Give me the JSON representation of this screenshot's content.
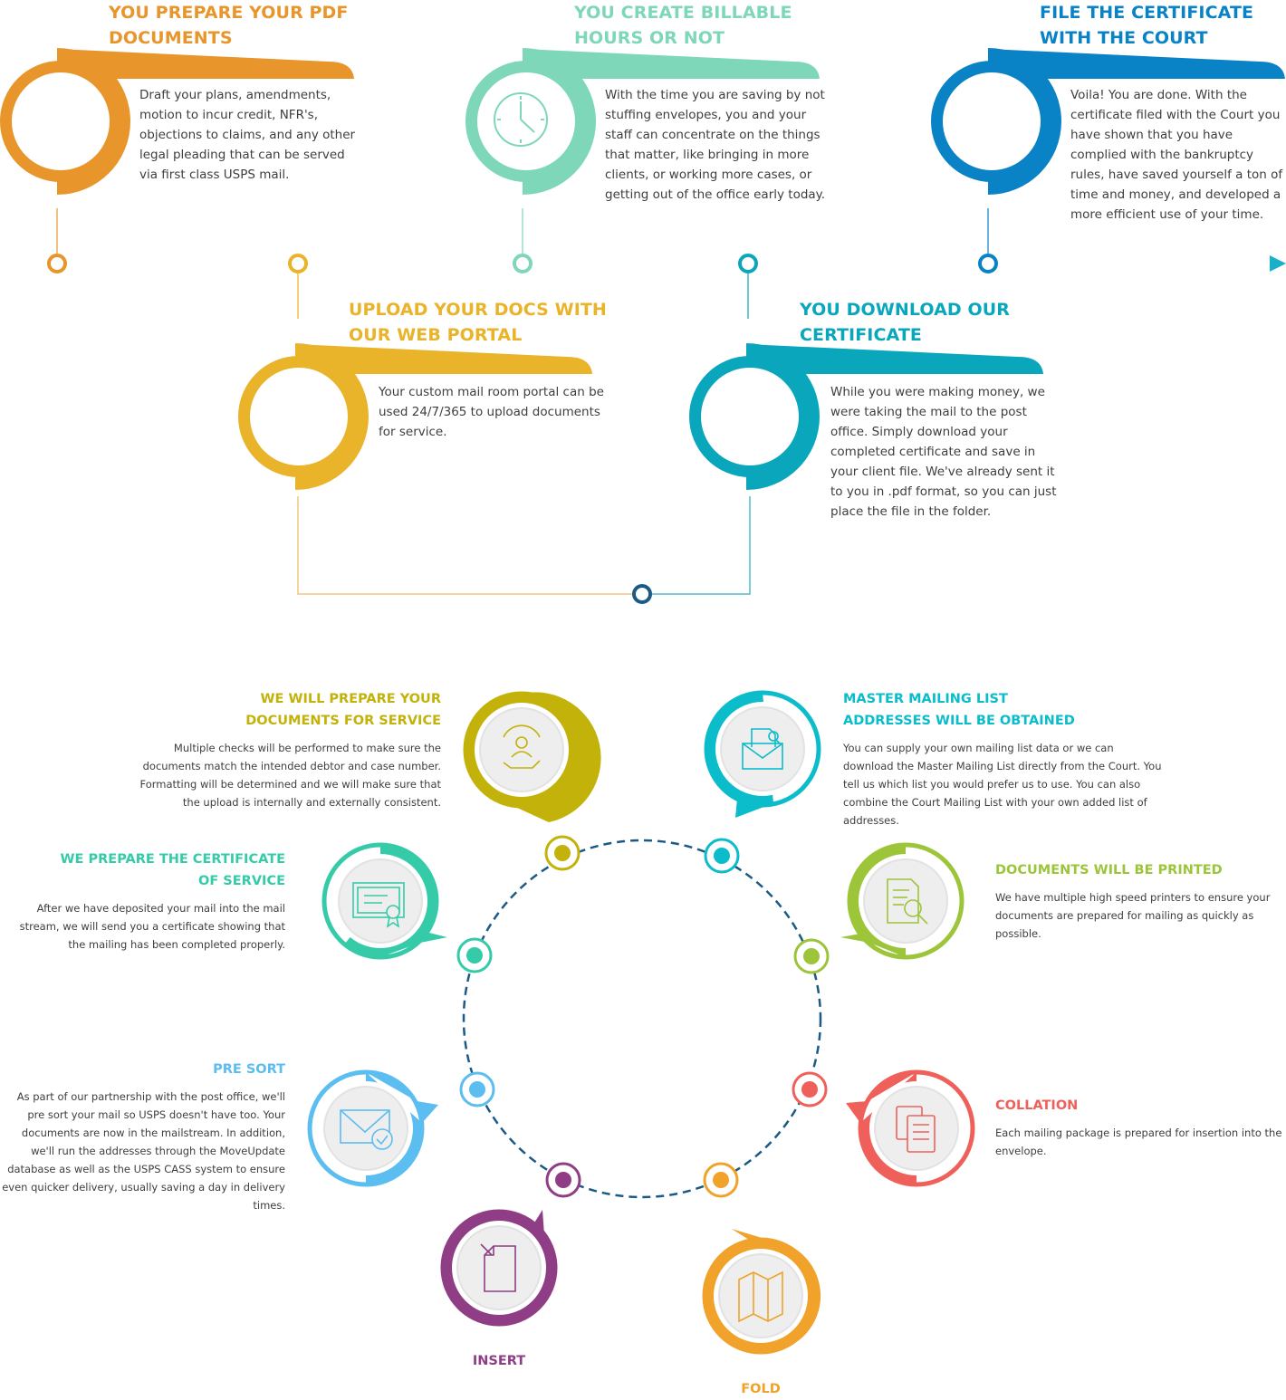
{
  "timeline": {
    "steps": [
      {
        "title": "YOU PREPARE YOUR PDF DOCUMENTS",
        "text": "Draft your plans, amendments, motion to incur credit, NFR's, objections to claims, and any other legal pleading that can be served via first class USPS mail.",
        "color": "#e8962b",
        "icon": "blank-circle"
      },
      {
        "title": "UPLOAD YOUR DOCS WITH OUR WEB PORTAL",
        "text": "Your custom mail room portal can be used 24/7/365 to upload documents for service.",
        "color": "#e9b32a",
        "icon": "blank-circle"
      },
      {
        "title": "YOU CREATE BILLABLE HOURS OR NOT",
        "text": "With the time you are saving by not stuffing envelopes, you and your staff can concentrate on the things that matter, like bringing in more clients, or working more cases, or getting out of the office early today.",
        "color": "#7fd7b9",
        "icon": "clock-icon"
      },
      {
        "title": "YOU DOWNLOAD OUR CERTIFICATE",
        "text": "While you were making money, we were taking the mail to the post office. Simply download your completed certificate and save in your client file. We've already sent it to you in .pdf format, so you can just place the file in the folder.",
        "color": "#0aa7bc",
        "icon": "blank-circle"
      },
      {
        "title": "FILE THE CERTIFICATE WITH THE COURT",
        "text": "Voila! You are done. With the certificate filed with the Court you have shown that you have complied with the bankruptcy rules, have saved yourself a ton of time and money, and developed a more efficient use of your time.",
        "color": "#0a82c6",
        "icon": "blank-circle"
      }
    ]
  },
  "cycle": {
    "ring_color": "#1b5a86",
    "steps": [
      {
        "title": "WE WILL PREPARE YOUR DOCUMENTS FOR SERVICE",
        "text": "Multiple checks will be performed to make sure the documents match the intended debtor and case number. Formatting will be determined and we will make sure that the upload is internally and externally consistent.",
        "color": "#c2b20a",
        "icon": "person-check-icon"
      },
      {
        "title": "MASTER MAILING LIST ADDRESSES WILL BE OBTAINED",
        "text": "You can supply your own mailing list data or we can download the Master Mailing List directly from the Court. You tell us which list you would prefer us to use. You can also combine the Court Mailing List with your own added list of addresses.",
        "color": "#0bbccb",
        "icon": "envelope-search-icon"
      },
      {
        "title": "DOCUMENTS WILL BE PRINTED",
        "text": "We have multiple high speed printers to ensure your documents are prepared for mailing as quickly as possible.",
        "color": "#9cc53a",
        "icon": "document-search-icon"
      },
      {
        "title": "COLLATION",
        "text": "Each mailing package is prepared for insertion into the envelope.",
        "color": "#f0605a",
        "icon": "copy-documents-icon"
      },
      {
        "title": "FOLD",
        "color": "#f0a22a",
        "icon": "folded-map-icon"
      },
      {
        "title": "INSERT",
        "color": "#8f3d84",
        "icon": "insert-page-icon"
      },
      {
        "title": "PRE SORT",
        "text": "As part of our partnership with the post office, we'll pre sort your mail so USPS doesn't have too. Your documents are now in the mailstream. In addition, we'll run the addresses through the MoveUpdate database as well as the USPS CASS system to ensure even quicker delivery, usually saving a day in delivery times.",
        "color": "#5bbdf0",
        "icon": "envelope-check-icon"
      },
      {
        "title": "WE PREPARE THE CERTIFICATE OF SERVICE",
        "text": "After we have deposited your mail into the mail stream, we will send you a certificate showing that the mailing has been completed properly.",
        "color": "#35cba9",
        "icon": "certificate-icon"
      }
    ]
  }
}
